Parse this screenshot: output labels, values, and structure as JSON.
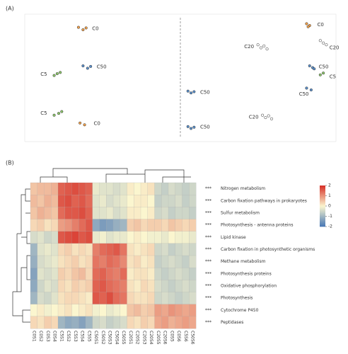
{
  "chart_data": [
    {
      "type": "scatter",
      "panel": "(A)",
      "xlim": [
        -1,
        1
      ],
      "ylim": [
        -1,
        1
      ],
      "series": [
        {
          "name": "C0",
          "color": "#f0a04b",
          "x": [
            -0.67,
            -0.64,
            -0.62,
            -0.66,
            -0.63,
            0.83,
            0.85,
            0.84
          ],
          "y": [
            0.84,
            0.8,
            0.83,
            -0.75,
            -0.78,
            0.9,
            0.87,
            0.85
          ]
        },
        {
          "name": "C5",
          "color": "#8cc56a",
          "x": [
            -0.83,
            -0.81,
            -0.79,
            -0.83,
            -0.8,
            -0.78,
            0.92,
            0.94
          ],
          "y": [
            0.04,
            0.07,
            0.09,
            -0.62,
            -0.59,
            -0.56,
            0.05,
            0.08
          ]
        },
        {
          "name": "C20",
          "color": "#ffffff",
          "x": [
            0.51,
            0.53,
            0.55,
            0.57,
            0.54,
            0.56,
            0.58,
            0.6,
            0.92,
            0.94,
            0.96
          ],
          "y": [
            0.55,
            0.5,
            0.53,
            0.48,
            -0.62,
            -0.66,
            -0.63,
            -0.68,
            0.62,
            0.58,
            0.55
          ]
        },
        {
          "name": "C50",
          "color": "#5b8fc9",
          "x": [
            -0.64,
            -0.61,
            -0.59,
            0.05,
            0.07,
            0.09,
            0.05,
            0.07,
            0.09,
            0.85,
            0.87,
            0.88,
            0.83,
            0.86
          ],
          "y": [
            0.2,
            0.16,
            0.19,
            -0.22,
            -0.25,
            -0.23,
            -0.81,
            -0.84,
            -0.82,
            0.2,
            0.17,
            0.15,
            -0.17,
            -0.2
          ]
        }
      ],
      "annotations": [
        {
          "text": "C0",
          "x": -0.58,
          "y": 0.82
        },
        {
          "text": "C5",
          "x": -0.92,
          "y": 0.06
        },
        {
          "text": "C50",
          "x": -0.55,
          "y": 0.18
        },
        {
          "text": "C5",
          "x": -0.92,
          "y": -0.59
        },
        {
          "text": "C0",
          "x": -0.57,
          "y": -0.76
        },
        {
          "text": "C50",
          "x": 0.13,
          "y": -0.24
        },
        {
          "text": "C50",
          "x": 0.13,
          "y": -0.82
        },
        {
          "text": "C20",
          "x": 0.42,
          "y": 0.52
        },
        {
          "text": "C20",
          "x": 0.45,
          "y": -0.65
        },
        {
          "text": "C0",
          "x": 0.9,
          "y": 0.88
        },
        {
          "text": "C20",
          "x": 0.98,
          "y": 0.5
        },
        {
          "text": "C50",
          "x": 0.91,
          "y": 0.18
        },
        {
          "text": "C5",
          "x": 0.98,
          "y": 0.02
        },
        {
          "text": "C50",
          "x": 0.78,
          "y": -0.27
        }
      ]
    },
    {
      "type": "heatmap",
      "panel": "(B)",
      "rows": [
        "Nitrogen metabolism",
        "Carbon fixation pathways in prokaryotes",
        "Sulfur metabolism",
        "Photosynthesis - antenna proteins",
        "Lipid kinase",
        "Carbon fixation in photosynthetic organisms",
        "Methane metabolism",
        "Photosynthesis proteins",
        "Oxidative phosphorylation",
        "Photosynthesis",
        "Cytochrome P450",
        "Peptidases"
      ],
      "row_marks": [
        "***",
        "***",
        "***",
        "***",
        "***",
        "***",
        "***",
        "***",
        "***",
        "***",
        "***",
        "***"
      ],
      "columns": [
        "C0S1",
        "C0S2",
        "C0S3",
        "C0S4",
        "C5S1",
        "C5S2",
        "C5S3",
        "C5S4",
        "C5S5",
        "C50S1",
        "C50S2",
        "C50S3",
        "C50S4",
        "C50S5",
        "C20S1",
        "C20S2",
        "C20S3",
        "C20S4",
        "C20S5",
        "C20S6",
        "C0S5",
        "C0S6",
        "C5S6",
        "C50S6"
      ],
      "values": [
        [
          0.5,
          0.6,
          0.6,
          0.7,
          1.5,
          1.6,
          1.7,
          1.6,
          1.5,
          -0.2,
          -0.3,
          -0.3,
          -0.4,
          -0.3,
          0.1,
          0.0,
          0.1,
          0.2,
          -0.5,
          -0.6,
          -0.4,
          -0.5,
          -0.6,
          -0.5
        ],
        [
          0.6,
          0.5,
          0.7,
          0.6,
          1.6,
          1.7,
          1.5,
          1.6,
          1.4,
          -0.3,
          -0.2,
          -0.4,
          -0.3,
          -0.2,
          0.0,
          0.1,
          0.1,
          0.0,
          -0.6,
          -0.5,
          -0.5,
          -0.4,
          -0.6,
          -0.5
        ],
        [
          0.5,
          0.7,
          0.6,
          0.5,
          1.4,
          1.6,
          1.6,
          1.7,
          1.5,
          -0.3,
          -0.3,
          -0.2,
          -0.4,
          -0.3,
          0.1,
          0.1,
          0.0,
          0.1,
          -0.5,
          -0.4,
          -0.6,
          -0.5,
          -0.5,
          -0.6
        ],
        [
          0.3,
          0.4,
          0.2,
          0.3,
          0.9,
          1.0,
          1.2,
          1.4,
          1.6,
          -1.2,
          -1.4,
          -1.3,
          -1.1,
          -1.0,
          0.4,
          0.5,
          0.3,
          0.4,
          0.4,
          0.3,
          0.5,
          0.4,
          0.3,
          0.4
        ],
        [
          -0.4,
          -0.3,
          -0.5,
          -0.4,
          1.6,
          1.7,
          1.8,
          1.6,
          1.7,
          -0.2,
          -0.1,
          -0.3,
          -0.2,
          -0.2,
          0.0,
          0.1,
          0.0,
          -0.1,
          -0.1,
          -0.2,
          0.0,
          -0.1,
          -0.1,
          -0.2
        ],
        [
          -1.0,
          -0.3,
          -0.2,
          -0.3,
          0.3,
          0.4,
          0.2,
          0.3,
          0.2,
          1.2,
          1.4,
          1.5,
          1.6,
          1.3,
          0.2,
          0.1,
          0.2,
          0.3,
          -0.5,
          -0.4,
          -0.6,
          -0.5,
          -0.4,
          -0.5
        ],
        [
          -1.1,
          -0.4,
          -0.3,
          -0.2,
          0.2,
          0.3,
          0.4,
          0.2,
          0.3,
          1.3,
          1.2,
          1.4,
          1.3,
          1.1,
          0.2,
          0.3,
          0.1,
          0.2,
          -0.6,
          -0.5,
          -0.4,
          -0.5,
          -0.6,
          -0.4
        ],
        [
          -1.3,
          -0.3,
          -0.4,
          -0.3,
          0.4,
          0.3,
          0.5,
          0.6,
          0.3,
          1.4,
          1.5,
          1.3,
          1.2,
          1.4,
          0.1,
          0.2,
          0.2,
          0.1,
          -0.5,
          -0.6,
          -0.5,
          -0.4,
          -0.5,
          -0.6
        ],
        [
          -1.2,
          -0.5,
          -0.3,
          -0.4,
          0.3,
          0.2,
          0.4,
          0.3,
          0.4,
          1.5,
          1.6,
          1.4,
          1.3,
          1.2,
          0.2,
          0.1,
          0.3,
          0.2,
          -0.4,
          -0.5,
          -0.6,
          -0.5,
          -0.4,
          -0.5
        ],
        [
          -1.0,
          -0.4,
          -0.5,
          -0.3,
          0.2,
          0.3,
          0.3,
          0.2,
          0.1,
          1.6,
          1.5,
          1.7,
          1.4,
          1.3,
          0.3,
          0.2,
          0.2,
          0.3,
          -0.5,
          -0.4,
          -0.5,
          -0.6,
          -0.5,
          -0.4
        ],
        [
          0.0,
          0.1,
          -0.1,
          0.0,
          0.1,
          0.2,
          0.0,
          0.1,
          0.2,
          -0.1,
          0.0,
          -0.2,
          -0.1,
          0.0,
          0.5,
          0.6,
          0.4,
          0.5,
          0.9,
          0.8,
          1.0,
          0.9,
          0.8,
          0.9
        ],
        [
          0.3,
          0.2,
          0.4,
          0.3,
          -1.0,
          -1.2,
          -1.1,
          -1.3,
          -1.0,
          -0.5,
          -0.4,
          -0.6,
          -0.5,
          -0.4,
          0.3,
          0.2,
          0.4,
          0.3,
          0.8,
          0.9,
          0.7,
          0.8,
          0.9,
          0.8
        ]
      ],
      "clim": [
        -2,
        2
      ],
      "cticks": [
        2,
        1,
        0,
        -1,
        -2
      ],
      "colors": [
        "#4575b4",
        "#fbf6cf",
        "#d73027"
      ]
    }
  ]
}
